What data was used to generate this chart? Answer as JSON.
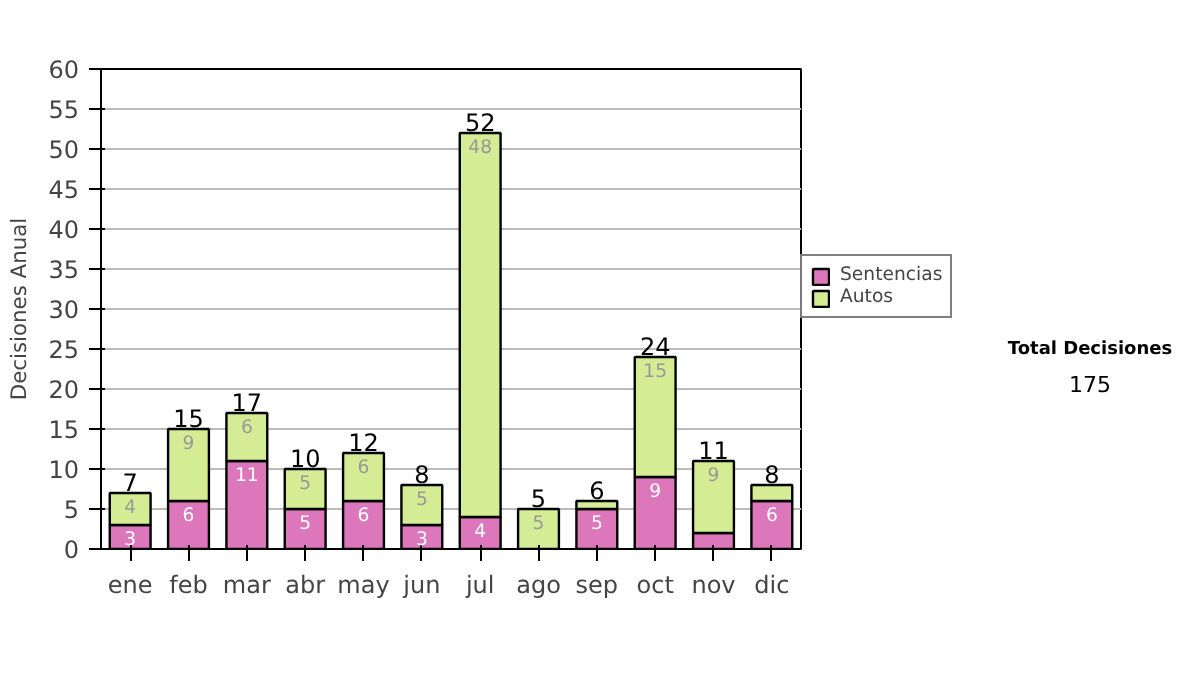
{
  "chart_data": {
    "type": "bar",
    "stacked": true,
    "ylabel": "Decisiones Anual",
    "categories": [
      "ene",
      "feb",
      "mar",
      "abr",
      "may",
      "jun",
      "jul",
      "ago",
      "sep",
      "oct",
      "nov",
      "dic"
    ],
    "series": [
      {
        "name": "Sentencias",
        "color": "#dd77bb",
        "values": [
          3,
          6,
          11,
          5,
          6,
          3,
          4,
          0,
          5,
          9,
          2,
          6
        ],
        "value_labels": [
          "3",
          "6",
          "11",
          "5",
          "6",
          "3",
          "4",
          null,
          "5",
          "9",
          null,
          "6"
        ]
      },
      {
        "name": "Autos",
        "color": "#d4ec94",
        "values": [
          4,
          9,
          6,
          5,
          6,
          5,
          48,
          5,
          1,
          15,
          9,
          2
        ],
        "value_labels": [
          "4",
          "9",
          "6",
          "5",
          "6",
          "5",
          "48",
          "5",
          null,
          "15",
          "9",
          null
        ]
      }
    ],
    "totals": [
      "7",
      "15",
      "17",
      "10",
      "12",
      "8",
      "52",
      "5",
      "6",
      "24",
      "11",
      "8"
    ],
    "ylim": [
      0,
      60
    ],
    "yticks": [
      0,
      5,
      10,
      15,
      20,
      25,
      30,
      35,
      40,
      45,
      50,
      55,
      60
    ],
    "grid": "y",
    "legend": "right",
    "annotations": [
      "Total Decisiones",
      "175"
    ]
  }
}
